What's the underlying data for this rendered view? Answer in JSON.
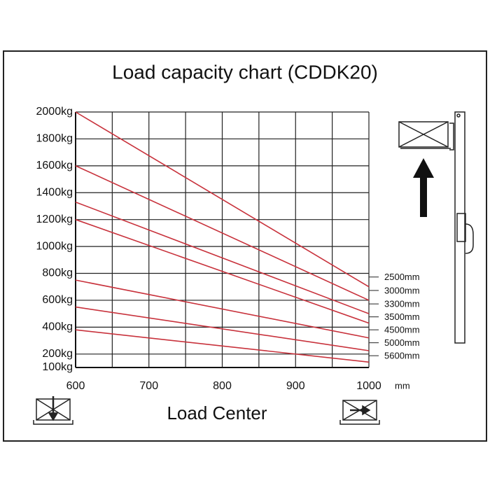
{
  "chart_data": {
    "type": "line",
    "title": "Load capacity chart (CDDK20)",
    "x_label": "Load Center",
    "x_unit": "mm",
    "x": [
      600,
      1000
    ],
    "xlim": [
      600,
      1000
    ],
    "xticks": [
      600,
      700,
      800,
      900,
      1000
    ],
    "x_gridlines": [
      600,
      650,
      700,
      750,
      800,
      850,
      900,
      950,
      1000
    ],
    "ylim": [
      100,
      2000
    ],
    "yticks": [
      {
        "value": 100,
        "label": "100kg"
      },
      {
        "value": 200,
        "label": "200kg"
      },
      {
        "value": 400,
        "label": "400kg"
      },
      {
        "value": 600,
        "label": "600kg"
      },
      {
        "value": 800,
        "label": "800kg"
      },
      {
        "value": 1000,
        "label": "1000kg"
      },
      {
        "value": 1200,
        "label": "1200kg"
      },
      {
        "value": 1400,
        "label": "1400kg"
      },
      {
        "value": 1600,
        "label": "1600kg"
      },
      {
        "value": 1800,
        "label": "1800kg"
      },
      {
        "value": 2000,
        "label": "2000kg"
      }
    ],
    "grid": true,
    "series": [
      {
        "name": "2500mm",
        "color": "#c8323c",
        "values": [
          2000,
          700
        ]
      },
      {
        "name": "3000mm",
        "color": "#c8323c",
        "values": [
          1600,
          600
        ]
      },
      {
        "name": "3300mm",
        "color": "#c8323c",
        "values": [
          1330,
          500
        ]
      },
      {
        "name": "3500mm",
        "color": "#c8323c",
        "values": [
          1200,
          430
        ]
      },
      {
        "name": "4500mm",
        "color": "#c8323c",
        "values": [
          750,
          320
        ]
      },
      {
        "name": "5000mm",
        "color": "#c8323c",
        "values": [
          550,
          225
        ]
      },
      {
        "name": "5600mm",
        "color": "#c8323c",
        "values": [
          380,
          140
        ]
      }
    ]
  }
}
